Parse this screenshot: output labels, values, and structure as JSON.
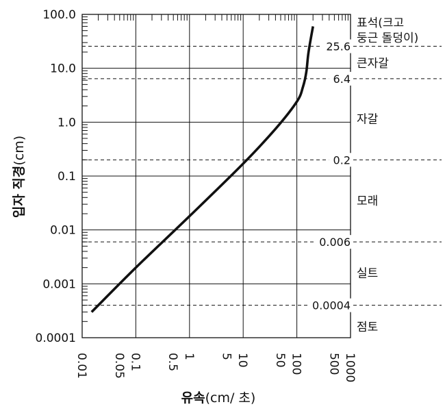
{
  "chart_data": {
    "type": "line",
    "xlabel_bold": "유속",
    "xlabel_rest": "(cm/ 초)",
    "ylabel_bold": "입자 직경",
    "ylabel_rest": "(cm)",
    "x_scale": "log",
    "y_scale": "log",
    "xlim": [
      0.01,
      1000
    ],
    "ylim": [
      0.0001,
      100
    ],
    "x_ticks": [
      {
        "value": 0.01,
        "label": "0.01"
      },
      {
        "value": 0.05,
        "label": "0.05"
      },
      {
        "value": 0.1,
        "label": "0.1"
      },
      {
        "value": 0.5,
        "label": "0.5"
      },
      {
        "value": 1,
        "label": "1"
      },
      {
        "value": 5,
        "label": "5"
      },
      {
        "value": 10,
        "label": "10"
      },
      {
        "value": 50,
        "label": "50"
      },
      {
        "value": 100,
        "label": "100"
      },
      {
        "value": 500,
        "label": "500"
      },
      {
        "value": 1000,
        "label": "1000"
      }
    ],
    "y_ticks": [
      {
        "value": 0.0001,
        "label": "0.0001"
      },
      {
        "value": 0.001,
        "label": "0.001"
      },
      {
        "value": 0.01,
        "label": "0.01"
      },
      {
        "value": 0.1,
        "label": "0.1"
      },
      {
        "value": 1,
        "label": "1.0"
      },
      {
        "value": 10,
        "label": "10.0"
      },
      {
        "value": 100,
        "label": "100.0"
      }
    ],
    "grid": true,
    "series": [
      {
        "x": [
          0.015,
          0.1,
          1,
          10,
          40,
          100,
          130,
          150,
          165,
          200
        ],
        "y": [
          0.0003,
          0.002,
          0.018,
          0.17,
          0.75,
          2.4,
          4.5,
          8.5,
          20,
          60
        ]
      }
    ],
    "boundaries": [
      {
        "value": 25.6,
        "label": "25.6"
      },
      {
        "value": 6.4,
        "label": "6.4"
      },
      {
        "value": 0.2,
        "label": "0.2"
      },
      {
        "value": 0.006,
        "label": "0.006"
      },
      {
        "value": 0.0004,
        "label": "0.0004"
      }
    ],
    "classes": [
      {
        "label": "표석(크고",
        "y": 70
      },
      {
        "label": "둥근 돌덩이)",
        "y": 37
      },
      {
        "label": "큰자갈",
        "y": 12.5
      },
      {
        "label": "자갈",
        "y": 1.15
      },
      {
        "label": "모래",
        "y": 0.035
      },
      {
        "label": "실트",
        "y": 0.0016
      },
      {
        "label": "점토",
        "y": 0.00016
      }
    ]
  }
}
